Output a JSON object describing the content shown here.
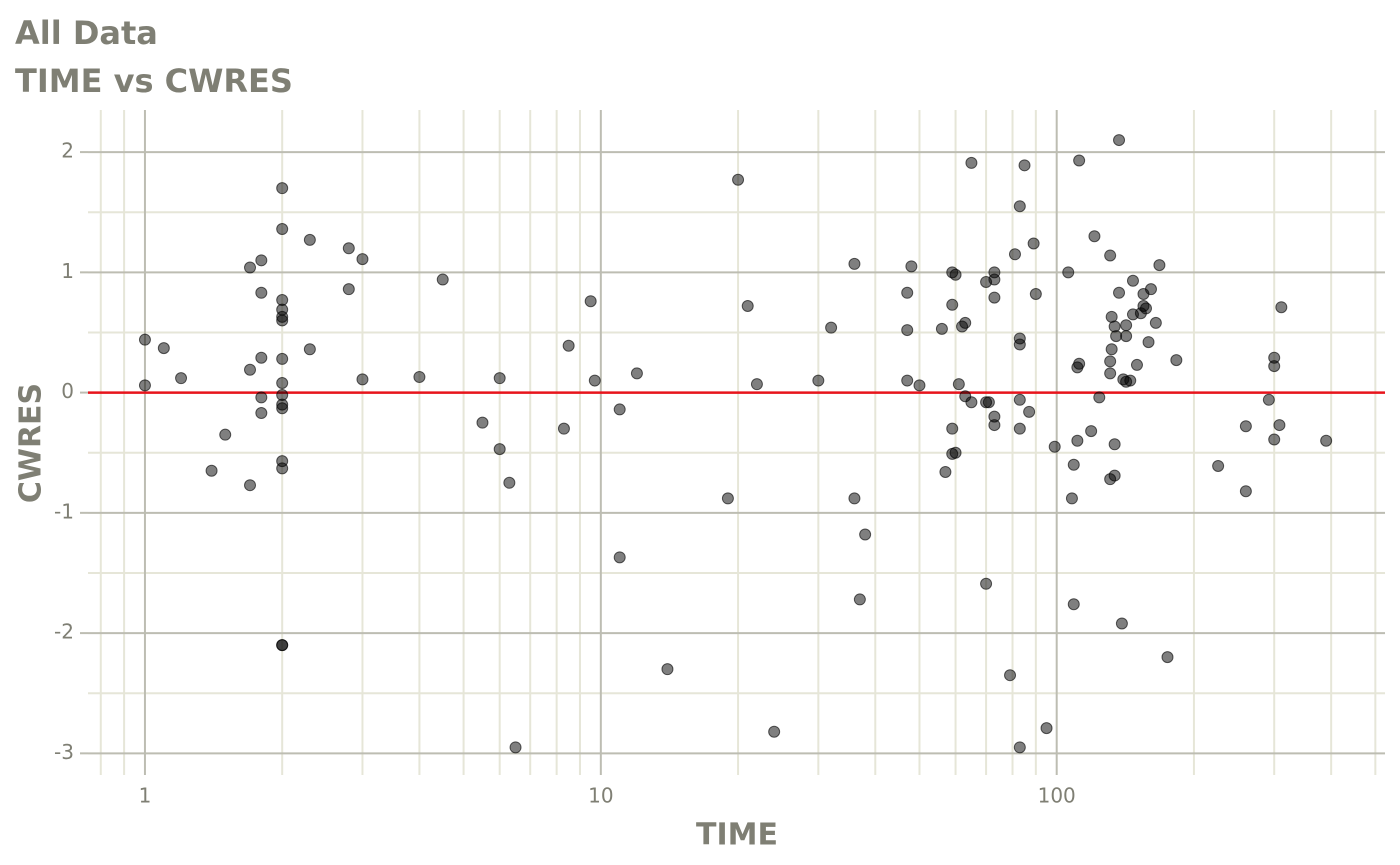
{
  "chart_data": {
    "type": "scatter",
    "title": "All Data",
    "subtitle": "TIME vs CWRES",
    "x_label": "TIME",
    "y_label": "CWRES",
    "x_log": true,
    "grid": true,
    "color": "#000000",
    "xlim": [
      0.75,
      525
    ],
    "ylim": [
      -3.18,
      2.35
    ],
    "xticks": [
      1,
      10,
      100
    ],
    "yticks": [
      -3,
      -2,
      -1,
      0,
      1,
      2
    ],
    "reference_line": {
      "y": 0,
      "color": "#e8141c"
    },
    "x": [
      1,
      1,
      1.1,
      1.2,
      1.4,
      1.5,
      1.7,
      1.7,
      1.7,
      1.8,
      1.8,
      1.8,
      1.8,
      1.8,
      2,
      2,
      2,
      2,
      2,
      2,
      2,
      2,
      2,
      2,
      2,
      2,
      2,
      2,
      2,
      2.3,
      2.3,
      2.8,
      2.8,
      3,
      3,
      4,
      4.5,
      5.5,
      6,
      6,
      6.3,
      6.5,
      8.3,
      8.5,
      9.5,
      9.7,
      11,
      11,
      12,
      14,
      19,
      20,
      21,
      22,
      24,
      30,
      32,
      36,
      36,
      37,
      38,
      47,
      47,
      47,
      48,
      50,
      56,
      57,
      59,
      59,
      59,
      59,
      60,
      60,
      61,
      62,
      63,
      63,
      65,
      65,
      70,
      70,
      70,
      71,
      73,
      73,
      73,
      73,
      73,
      79,
      81,
      83,
      83,
      83,
      83,
      83,
      83,
      85,
      87,
      89,
      90,
      95,
      99,
      106,
      108,
      109,
      109,
      111,
      111,
      112,
      112,
      119,
      121,
      124,
      131,
      131,
      131,
      131,
      132,
      132,
      134,
      134,
      134,
      135,
      137,
      137,
      139,
      140,
      142,
      142,
      142,
      145,
      147,
      147,
      150,
      153,
      155,
      155,
      157,
      159,
      161,
      165,
      168,
      175,
      183,
      226,
      260,
      260,
      292,
      300,
      300,
      300,
      308,
      311,
      390
    ],
    "y": [
      0.44,
      0.06,
      0.37,
      0.12,
      -0.65,
      -0.35,
      1.04,
      0.19,
      -0.77,
      1.1,
      0.83,
      0.29,
      -0.04,
      -0.17,
      1.7,
      1.36,
      0.77,
      0.69,
      0.63,
      0.6,
      0.28,
      0.08,
      -0.02,
      -0.1,
      -0.13,
      -0.57,
      -0.63,
      -2.1,
      -2.1,
      1.27,
      0.36,
      1.2,
      0.86,
      1.11,
      0.11,
      0.13,
      0.94,
      -0.25,
      0.12,
      -0.47,
      -0.75,
      -2.95,
      -0.3,
      0.39,
      0.76,
      0.1,
      -0.14,
      -1.37,
      0.16,
      -2.3,
      -0.88,
      1.77,
      0.72,
      0.07,
      -2.82,
      0.1,
      0.54,
      -0.88,
      1.07,
      -1.72,
      -1.18,
      0.1,
      0.83,
      0.52,
      1.05,
      0.06,
      0.53,
      -0.66,
      0.73,
      -0.3,
      -0.51,
      1.0,
      -0.5,
      0.98,
      0.07,
      0.55,
      -0.03,
      0.58,
      -0.08,
      1.91,
      -1.59,
      -0.08,
      0.92,
      -0.08,
      0.94,
      1.0,
      0.79,
      -0.2,
      -0.27,
      -2.35,
      1.15,
      1.55,
      0.45,
      0.4,
      -0.06,
      -0.3,
      -2.95,
      1.89,
      -0.16,
      1.24,
      0.82,
      -2.79,
      -0.45,
      1.0,
      -0.88,
      -0.6,
      -1.76,
      0.21,
      -0.4,
      1.93,
      0.24,
      -0.32,
      1.3,
      -0.04,
      1.14,
      0.26,
      0.16,
      -0.72,
      0.63,
      0.36,
      0.55,
      -0.43,
      -0.69,
      0.47,
      2.1,
      0.83,
      -1.92,
      0.11,
      0.56,
      0.47,
      0.09,
      0.1,
      0.65,
      0.93,
      0.23,
      0.66,
      0.72,
      0.82,
      0.7,
      0.42,
      0.86,
      0.58,
      1.06,
      -2.2,
      0.27,
      -0.61,
      -0.28,
      -0.82,
      -0.06,
      0.22,
      0.29,
      -0.39,
      -0.27,
      0.71,
      -0.4
    ]
  }
}
